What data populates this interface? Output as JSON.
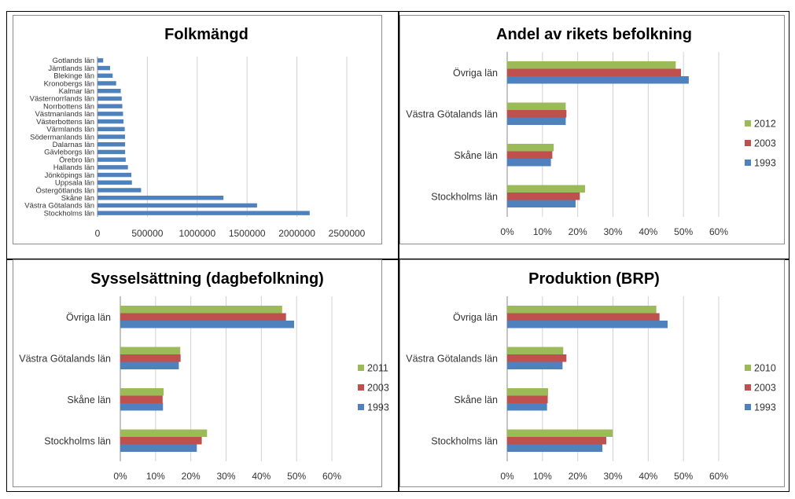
{
  "chart_data": [
    {
      "type": "bar",
      "orientation": "horizontal",
      "title": "Folkmängd",
      "categories": [
        "Gotlands län",
        "Jämtlands län",
        "Blekinge län",
        "Kronobergs län",
        "Kalmar län",
        "Västernorrlands län",
        "Norrbottens län",
        "Västmanlands län",
        "Västerbottens län",
        "Värmlands län",
        "Södermanlands län",
        "Dalarnas län",
        "Gävleborgs län",
        "Örebro län",
        "Hallands län",
        "Jönköpings län",
        "Uppsala län",
        "Östergötlands län",
        "Skåne län",
        "Västra Götalands län",
        "Stockholms län"
      ],
      "values": [
        57000,
        126000,
        152000,
        187000,
        233000,
        243000,
        249000,
        256000,
        261000,
        273000,
        276000,
        277000,
        277000,
        283000,
        305000,
        339000,
        345000,
        437000,
        1263000,
        1600000,
        2128000
      ],
      "xlim": [
        0,
        2500000
      ],
      "xticks": [
        "0",
        "500000",
        "1000000",
        "1500000",
        "2000000",
        "2500000"
      ],
      "colors": {
        "bar": "#4f81bd"
      },
      "grid": true,
      "legend": "none"
    },
    {
      "type": "bar",
      "orientation": "horizontal",
      "title": "Andel av rikets befolkning",
      "categories": [
        "Övriga län",
        "Västra Götalands län",
        "Skåne län",
        "Stockholms län"
      ],
      "series": [
        {
          "name": "2012",
          "color": "#9bbb59",
          "values": [
            47.8,
            16.6,
            13.2,
            22.1
          ]
        },
        {
          "name": "2003",
          "color": "#c0504d",
          "values": [
            49.3,
            16.8,
            12.8,
            20.6
          ]
        },
        {
          "name": "1993",
          "color": "#4f81bd",
          "values": [
            51.5,
            16.6,
            12.4,
            19.4
          ]
        }
      ],
      "xlim": [
        0,
        60
      ],
      "xticks": [
        "0%",
        "10%",
        "20%",
        "30%",
        "40%",
        "50%",
        "60%"
      ],
      "grid": true,
      "legend": "right"
    },
    {
      "type": "bar",
      "orientation": "horizontal",
      "title": "Sysselsättning (dagbefolkning)",
      "categories": [
        "Övriga län",
        "Västra Götalands län",
        "Skåne län",
        "Stockholms län"
      ],
      "series": [
        {
          "name": "2011",
          "color": "#9bbb59",
          "values": [
            45.9,
            17.0,
            12.3,
            24.6
          ]
        },
        {
          "name": "2003",
          "color": "#c0504d",
          "values": [
            47.0,
            17.1,
            12.0,
            23.1
          ]
        },
        {
          "name": "1993",
          "color": "#4f81bd",
          "values": [
            49.3,
            16.6,
            12.1,
            21.7
          ]
        }
      ],
      "xlim": [
        0,
        60
      ],
      "xticks": [
        "0%",
        "10%",
        "20%",
        "30%",
        "40%",
        "50%",
        "60%"
      ],
      "grid": true,
      "legend": "right"
    },
    {
      "type": "bar",
      "orientation": "horizontal",
      "title": "Produktion (BRP)",
      "categories": [
        "Övriga län",
        "Västra Götalands län",
        "Skåne län",
        "Stockholms län"
      ],
      "series": [
        {
          "name": "2010",
          "color": "#9bbb59",
          "values": [
            42.3,
            15.9,
            11.6,
            29.9
          ]
        },
        {
          "name": "2003",
          "color": "#c0504d",
          "values": [
            43.2,
            16.8,
            11.5,
            28.1
          ]
        },
        {
          "name": "1993",
          "color": "#4f81bd",
          "values": [
            45.5,
            15.7,
            11.3,
            27.0
          ]
        }
      ],
      "xlim": [
        0,
        60
      ],
      "xticks": [
        "0%",
        "10%",
        "20%",
        "30%",
        "40%",
        "50%",
        "60%"
      ],
      "grid": true,
      "legend": "right"
    }
  ]
}
